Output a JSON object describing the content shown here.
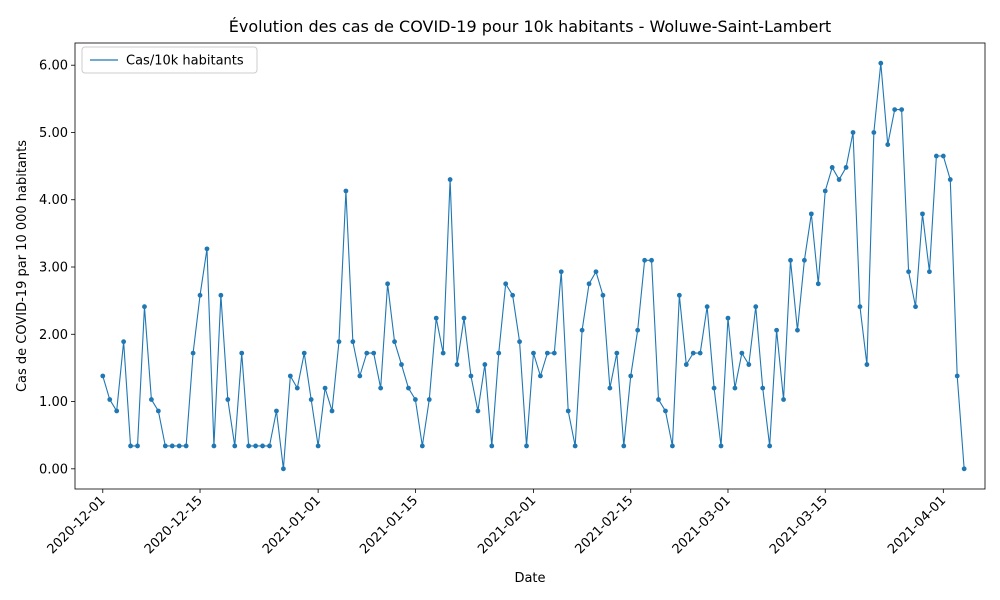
{
  "chart_data": {
    "type": "line",
    "title": "Évolution des cas de COVID-19 pour 10k habitants - Woluwe-Saint-Lambert",
    "xlabel": "Date",
    "ylabel": "Cas de COVID-19 par 10 000 habitants",
    "x_start": "2020-12-01",
    "xlim": [
      "2020-11-27",
      "2021-04-07"
    ],
    "ylim": [
      -0.3,
      6.33
    ],
    "x_ticks": [
      "2020-12-01",
      "2020-12-15",
      "2021-01-01",
      "2021-01-15",
      "2021-02-01",
      "2021-02-15",
      "2021-03-01",
      "2021-03-15",
      "2021-04-01"
    ],
    "y_ticks": [
      0,
      1,
      2,
      3,
      4,
      5,
      6
    ],
    "y_tick_labels": [
      "0.00",
      "1.00",
      "2.00",
      "3.00",
      "4.00",
      "5.00",
      "6.00"
    ],
    "legend_position": "top-left",
    "grid": false,
    "series": [
      {
        "name": "Cas/10k habitants",
        "color": "#1f77b4",
        "values": [
          1.38,
          1.03,
          0.86,
          1.89,
          0.34,
          0.34,
          2.41,
          1.03,
          0.86,
          0.34,
          0.34,
          0.34,
          0.34,
          1.72,
          2.58,
          3.27,
          0.34,
          2.58,
          1.03,
          0.34,
          1.72,
          0.34,
          0.34,
          0.34,
          0.34,
          0.86,
          0.0,
          1.38,
          1.2,
          1.72,
          1.03,
          0.34,
          1.2,
          0.86,
          1.89,
          4.13,
          1.89,
          1.38,
          1.72,
          1.72,
          1.2,
          2.75,
          1.89,
          1.55,
          1.2,
          1.03,
          0.34,
          1.03,
          2.24,
          1.72,
          4.3,
          1.55,
          2.24,
          1.38,
          0.86,
          1.55,
          0.34,
          1.72,
          2.75,
          2.58,
          1.89,
          0.34,
          1.72,
          1.38,
          1.72,
          1.72,
          2.93,
          0.86,
          0.34,
          2.06,
          2.75,
          2.93,
          2.58,
          1.2,
          1.72,
          0.34,
          1.38,
          2.06,
          3.1,
          3.1,
          1.03,
          0.86,
          0.34,
          2.58,
          1.55,
          1.72,
          1.72,
          2.41,
          1.2,
          0.34,
          2.24,
          1.2,
          1.72,
          1.55,
          2.41,
          1.2,
          0.34,
          2.06,
          1.03,
          3.1,
          2.06,
          3.1,
          3.79,
          2.75,
          4.13,
          4.48,
          4.3,
          4.48,
          5.0,
          2.41,
          1.55,
          5.0,
          6.03,
          4.82,
          5.34,
          5.34,
          2.93,
          2.41,
          3.79,
          2.93,
          4.65,
          4.65,
          4.3,
          1.38,
          0.0
        ]
      }
    ]
  }
}
